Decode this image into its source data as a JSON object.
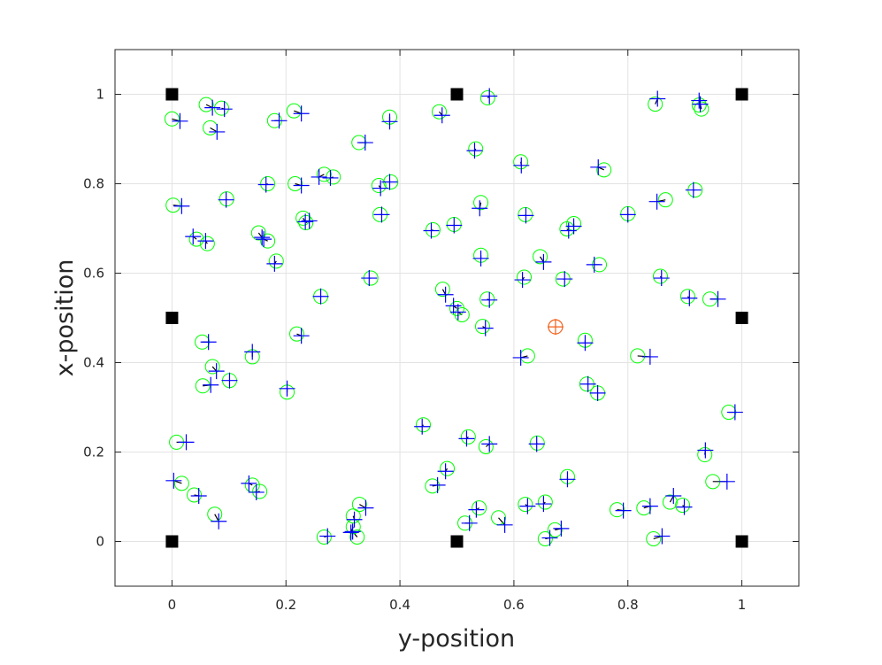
{
  "chart_data": {
    "type": "scatter",
    "xlabel": "y-position",
    "ylabel": "x-position",
    "xlim": [
      -0.1,
      1.1
    ],
    "ylim": [
      -0.1,
      1.1
    ],
    "xticks": [
      0,
      0.2,
      0.4,
      0.6,
      0.8,
      1
    ],
    "yticks": [
      0,
      0.2,
      0.4,
      0.6,
      0.8,
      1
    ],
    "grid": true,
    "series": [
      {
        "color": "#00ff00",
        "marker": "circle",
        "x": [
          0.0,
          0.06,
          0.087,
          0.067,
          0.18,
          0.214,
          0.328,
          0.382,
          0.469,
          0.554,
          0.533,
          0.612,
          0.758,
          0.848,
          0.925,
          0.929,
          0.002,
          0.096,
          0.168,
          0.216,
          0.267,
          0.283,
          0.363,
          0.384,
          0.365,
          0.23,
          0.235,
          0.043,
          0.062,
          0.152,
          0.168,
          0.183,
          0.261,
          0.349,
          0.458,
          0.495,
          0.542,
          0.62,
          0.693,
          0.705,
          0.8,
          0.866,
          0.918,
          0.542,
          0.646,
          0.75,
          0.618,
          0.686,
          0.857,
          0.905,
          0.944,
          0.475,
          0.5,
          0.509,
          0.553,
          0.545,
          0.219,
          0.053,
          0.141,
          0.071,
          0.101,
          0.054,
          0.202,
          0.624,
          0.725,
          0.817,
          0.728,
          0.747,
          0.977,
          0.008,
          0.441,
          0.52,
          0.551,
          0.641,
          0.935,
          0.483,
          0.457,
          0.694,
          0.017,
          0.039,
          0.141,
          0.154,
          0.075,
          0.329,
          0.318,
          0.318,
          0.325,
          0.267,
          0.514,
          0.539,
          0.573,
          0.62,
          0.655,
          0.655,
          0.672,
          0.781,
          0.828,
          0.874,
          0.896,
          0.845,
          0.949
        ],
        "values": [
          0.945,
          0.977,
          0.969,
          0.925,
          0.941,
          0.963,
          0.892,
          0.949,
          0.961,
          0.992,
          0.878,
          0.849,
          0.831,
          0.978,
          0.976,
          0.967,
          0.752,
          0.766,
          0.8,
          0.8,
          0.821,
          0.815,
          0.796,
          0.804,
          0.731,
          0.723,
          0.713,
          0.676,
          0.666,
          0.69,
          0.672,
          0.627,
          0.548,
          0.589,
          0.697,
          0.709,
          0.758,
          0.731,
          0.699,
          0.711,
          0.733,
          0.764,
          0.786,
          0.64,
          0.637,
          0.619,
          0.591,
          0.587,
          0.593,
          0.548,
          0.542,
          0.564,
          0.521,
          0.507,
          0.542,
          0.481,
          0.464,
          0.446,
          0.413,
          0.391,
          0.36,
          0.348,
          0.334,
          0.415,
          0.45,
          0.415,
          0.352,
          0.332,
          0.289,
          0.222,
          0.261,
          0.234,
          0.212,
          0.22,
          0.194,
          0.163,
          0.124,
          0.145,
          0.13,
          0.104,
          0.126,
          0.112,
          0.061,
          0.083,
          0.057,
          0.033,
          0.01,
          0.01,
          0.041,
          0.075,
          0.053,
          0.083,
          0.088,
          0.006,
          0.026,
          0.071,
          0.075,
          0.088,
          0.081,
          0.006,
          0.134
        ]
      },
      {
        "color": "#0000ff",
        "marker": "plus",
        "x": [
          0.014,
          0.071,
          0.092,
          0.079,
          0.188,
          0.227,
          0.339,
          0.382,
          0.474,
          0.557,
          0.531,
          0.613,
          0.748,
          0.852,
          0.925,
          0.927,
          0.017,
          0.095,
          0.165,
          0.227,
          0.258,
          0.278,
          0.366,
          0.382,
          0.368,
          0.234,
          0.241,
          0.037,
          0.059,
          0.158,
          0.161,
          0.18,
          0.261,
          0.346,
          0.455,
          0.495,
          0.54,
          0.621,
          0.696,
          0.705,
          0.8,
          0.851,
          0.915,
          0.542,
          0.652,
          0.741,
          0.615,
          0.689,
          0.859,
          0.908,
          0.958,
          0.48,
          0.494,
          0.502,
          0.557,
          0.55,
          0.227,
          0.064,
          0.141,
          0.078,
          0.101,
          0.068,
          0.202,
          0.612,
          0.725,
          0.839,
          0.73,
          0.747,
          0.988,
          0.025,
          0.439,
          0.517,
          0.557,
          0.64,
          0.936,
          0.48,
          0.466,
          0.694,
          0.003,
          0.047,
          0.135,
          0.148,
          0.082,
          0.34,
          0.32,
          0.314,
          0.317,
          0.273,
          0.522,
          0.534,
          0.584,
          0.624,
          0.652,
          0.663,
          0.683,
          0.792,
          0.839,
          0.88,
          0.899,
          0.86,
          0.974
        ],
        "values": [
          0.94,
          0.97,
          0.967,
          0.916,
          0.941,
          0.957,
          0.892,
          0.939,
          0.953,
          0.996,
          0.874,
          0.841,
          0.837,
          0.99,
          0.986,
          0.978,
          0.75,
          0.764,
          0.798,
          0.796,
          0.815,
          0.813,
          0.79,
          0.804,
          0.731,
          0.715,
          0.717,
          0.682,
          0.672,
          0.68,
          0.676,
          0.621,
          0.548,
          0.589,
          0.695,
          0.707,
          0.745,
          0.729,
          0.695,
          0.705,
          0.731,
          0.76,
          0.786,
          0.633,
          0.625,
          0.619,
          0.585,
          0.587,
          0.589,
          0.544,
          0.542,
          0.552,
          0.527,
          0.513,
          0.54,
          0.477,
          0.46,
          0.446,
          0.424,
          0.381,
          0.36,
          0.35,
          0.342,
          0.411,
          0.444,
          0.413,
          0.352,
          0.332,
          0.289,
          0.222,
          0.257,
          0.23,
          0.218,
          0.218,
          0.204,
          0.157,
          0.126,
          0.139,
          0.136,
          0.102,
          0.13,
          0.11,
          0.045,
          0.075,
          0.049,
          0.02,
          0.022,
          0.012,
          0.041,
          0.071,
          0.037,
          0.079,
          0.084,
          0.008,
          0.029,
          0.069,
          0.079,
          0.102,
          0.077,
          0.012,
          0.134
        ]
      },
      {
        "color": "#000000",
        "marker": "square",
        "x": [
          0,
          0.5,
          1,
          0,
          1,
          0,
          0.5,
          1
        ],
        "values": [
          0,
          0,
          0,
          0.5,
          0.5,
          1,
          1,
          1
        ]
      },
      {
        "color": "#f2601a",
        "marker": "circle-plus",
        "x": [
          0.673
        ],
        "values": [
          0.48
        ]
      }
    ]
  }
}
